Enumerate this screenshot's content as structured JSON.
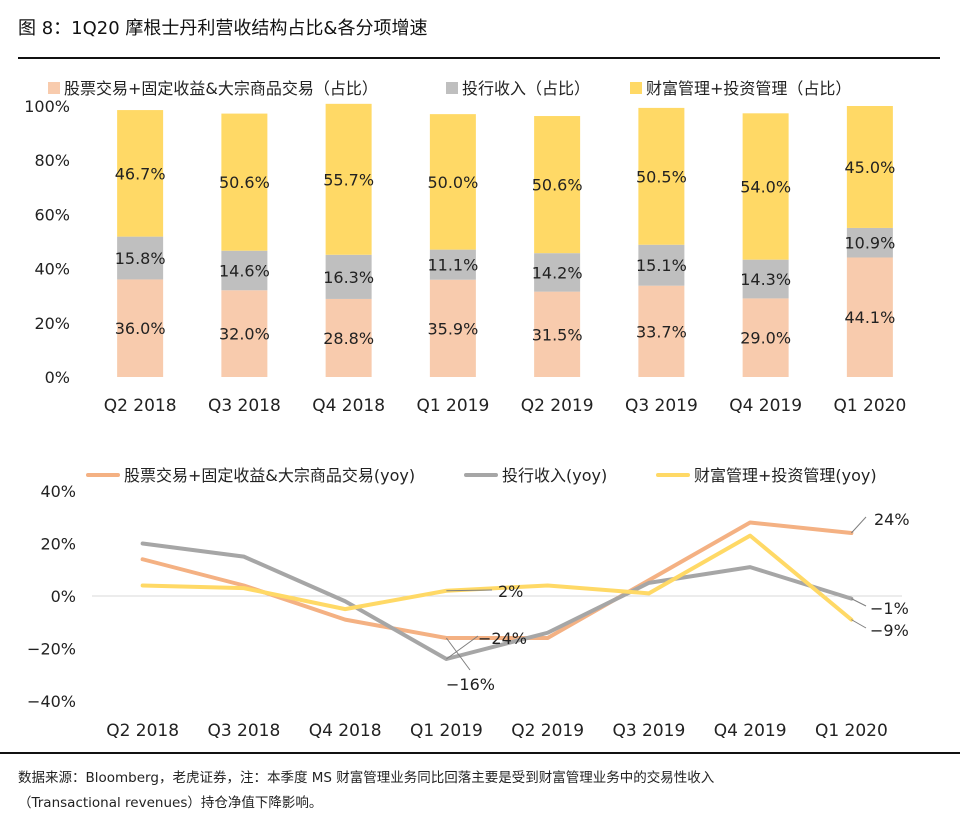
{
  "header": {
    "title": "图 8：1Q20 摩根士丹利营收结构占比&各分项增速"
  },
  "footer": {
    "source_line1": "数据来源：Bloomberg，老虎证券，注：本季度 MS 财富管理业务同比回落主要是受到财富管理业务中的交易性收入",
    "source_line2": "（Transactional revenues）持仓净值下降影响。"
  },
  "chart_data": [
    {
      "type": "bar",
      "stacked": true,
      "categories": [
        "Q2 2018",
        "Q3 2018",
        "Q4 2018",
        "Q1 2019",
        "Q2 2019",
        "Q3 2019",
        "Q4 2019",
        "Q1 2020"
      ],
      "y_ticks": [
        "0%",
        "20%",
        "40%",
        "60%",
        "80%",
        "100%"
      ],
      "ylim": [
        0,
        100
      ],
      "legend_position": "top",
      "series": [
        {
          "name": "股票交易+固定收益&大宗商品交易（占比）",
          "color": "#F8CBAD",
          "values": [
            36.0,
            32.0,
            28.8,
            35.9,
            31.5,
            33.7,
            29.0,
            44.1
          ],
          "labels": [
            "36.0%",
            "32.0%",
            "28.8%",
            "35.9%",
            "31.5%",
            "33.7%",
            "29.0%",
            "44.1%"
          ]
        },
        {
          "name": "投行收入（占比）",
          "color": "#BFBFBF",
          "values": [
            15.8,
            14.6,
            16.3,
            11.1,
            14.2,
            15.1,
            14.3,
            10.9
          ],
          "labels": [
            "15.8%",
            "14.6%",
            "16.3%",
            "11.1%",
            "14.2%",
            "15.1%",
            "14.3%",
            "10.9%"
          ]
        },
        {
          "name": "财富管理+投资管理（占比）",
          "color": "#FFD966",
          "values": [
            46.7,
            50.6,
            55.7,
            50.0,
            50.6,
            50.5,
            54.0,
            45.0
          ],
          "labels": [
            "46.7%",
            "50.6%",
            "55.7%",
            "50.0%",
            "50.6%",
            "50.5%",
            "54.0%",
            "45.0%"
          ]
        }
      ]
    },
    {
      "type": "line",
      "categories": [
        "Q2 2018",
        "Q3 2018",
        "Q4 2018",
        "Q1 2019",
        "Q2 2019",
        "Q3 2019",
        "Q4 2019",
        "Q1 2020"
      ],
      "y_ticks": [
        "40%",
        "20%",
        "0%",
        "−20%",
        "−40%"
      ],
      "ylim": [
        -40,
        40
      ],
      "legend_position": "top",
      "series": [
        {
          "name": "股票交易+固定收益&大宗商品交易(yoy)",
          "color": "#F4B183",
          "values": [
            14,
            4,
            -9,
            -16,
            -16,
            6,
            28,
            24
          ]
        },
        {
          "name": "投行收入(yoy)",
          "color": "#A6A6A6",
          "values": [
            20,
            15,
            -2,
            -24,
            -14,
            5,
            11,
            -1
          ]
        },
        {
          "name": "财富管理+投资管理(yoy)",
          "color": "#FFD966",
          "values": [
            4,
            3,
            -5,
            2,
            4,
            1,
            23,
            -9
          ]
        }
      ],
      "annotations": [
        {
          "text": "24%"
        },
        {
          "text": "2%"
        },
        {
          "text": "−24%"
        },
        {
          "text": "−16%"
        },
        {
          "text": "−1%"
        },
        {
          "text": "−9%"
        }
      ]
    }
  ]
}
